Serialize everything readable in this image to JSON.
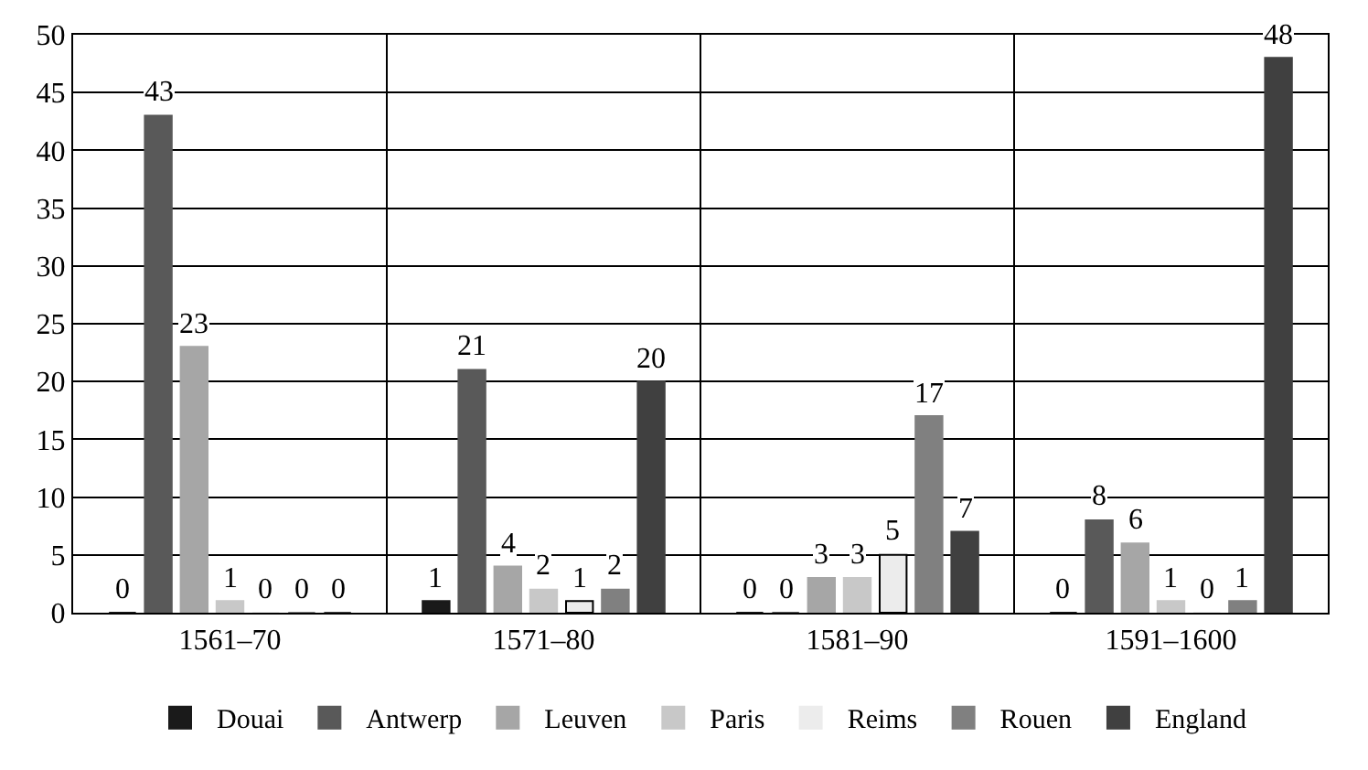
{
  "chart_data": {
    "type": "bar",
    "categories": [
      "1561–70",
      "1571–80",
      "1581–90",
      "1591–1600"
    ],
    "series": [
      {
        "name": "Douai",
        "color": "#1a1a1a",
        "values": [
          0,
          1,
          0,
          0
        ]
      },
      {
        "name": "Antwerp",
        "color": "#595959",
        "values": [
          43,
          21,
          0,
          8
        ]
      },
      {
        "name": "Leuven",
        "color": "#a6a6a6",
        "values": [
          23,
          4,
          3,
          6
        ]
      },
      {
        "name": "Paris",
        "color": "#c8c8c8",
        "values": [
          1,
          2,
          3,
          1
        ]
      },
      {
        "name": "Reims",
        "color": "#ececec",
        "values": [
          0,
          1,
          5,
          0
        ]
      },
      {
        "name": "Rouen",
        "color": "#808080",
        "values": [
          0,
          2,
          17,
          1
        ]
      },
      {
        "name": "England",
        "color": "#404040",
        "values": [
          0,
          20,
          7,
          48
        ]
      }
    ],
    "ylim": [
      0,
      50
    ],
    "yticks": [
      0,
      5,
      10,
      15,
      20,
      25,
      30,
      35,
      40,
      45,
      50
    ],
    "grid": true,
    "legend": "bottom",
    "data_labels": true
  }
}
